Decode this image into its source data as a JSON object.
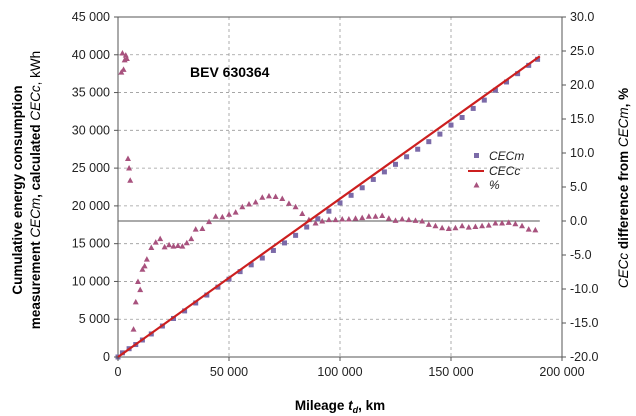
{
  "chart_data": {
    "type": "scatter",
    "annotation": "BEV 630364",
    "x_axis": {
      "label_parts": [
        "Mileage ",
        "t",
        "d",
        ", km"
      ],
      "range": [
        0,
        200000
      ],
      "ticks": [
        0,
        50000,
        100000,
        150000,
        200000
      ],
      "tick_labels": [
        "0",
        "50 000",
        "100 000",
        "150 000",
        "200 000"
      ]
    },
    "y_axis_left": {
      "label_line1": "Cumulative energy consumption",
      "label_line2_parts": [
        "measurement ",
        "CECm",
        ", calculated ",
        "CECc",
        ", kWh"
      ],
      "range": [
        0,
        45000
      ],
      "ticks": [
        0,
        5000,
        10000,
        15000,
        20000,
        25000,
        30000,
        35000,
        40000,
        45000
      ],
      "tick_labels": [
        "0",
        "5 000",
        "10 000",
        "15 000",
        "20 000",
        "25 000",
        "30 000",
        "35 000",
        "40 000",
        "45 000"
      ]
    },
    "y_axis_right": {
      "label_parts": [
        "CECc",
        "  difference from ",
        "CECm",
        ", %"
      ],
      "range": [
        -20,
        30
      ],
      "ticks": [
        -20,
        -15,
        -10,
        -5,
        0,
        5,
        10,
        15,
        20,
        25,
        30
      ],
      "tick_labels": [
        "-20.0",
        "-15.0",
        "-10.0",
        "-5.0",
        "0.0",
        "5.0",
        "10.0",
        "15.0",
        "20.0",
        "25.0",
        "30.0"
      ]
    },
    "grid": true,
    "legend_position": "right",
    "series": [
      {
        "name": "CECm",
        "marker": "square",
        "axis": "left",
        "color": "#7b6aa8",
        "x": [
          0,
          2000,
          5000,
          8000,
          11000,
          15000,
          20000,
          25000,
          30000,
          35000,
          40000,
          45000,
          50000,
          55000,
          60000,
          65000,
          70000,
          75000,
          80000,
          85000,
          90000,
          95000,
          100000,
          105000,
          110000,
          115000,
          120000,
          125000,
          130000,
          135000,
          140000,
          145000,
          150000,
          155000,
          160000,
          165000,
          170000,
          175000,
          180000,
          185000,
          189000
        ],
        "y": [
          0,
          550,
          1100,
          1650,
          2250,
          3050,
          4100,
          5100,
          6100,
          7150,
          8200,
          9250,
          10300,
          11300,
          12200,
          13100,
          14100,
          15100,
          16100,
          17200,
          18300,
          19300,
          20400,
          21400,
          22400,
          23500,
          24500,
          25500,
          26500,
          27500,
          28500,
          29500,
          30700,
          31700,
          32900,
          34000,
          35300,
          36400,
          37500,
          38600,
          39400
        ]
      },
      {
        "name": "CECc",
        "marker": "line",
        "axis": "left",
        "color": "#cc1f1f",
        "x": [
          0,
          190000
        ],
        "y": [
          0,
          39800
        ]
      },
      {
        "name": "%",
        "marker": "triangle",
        "axis": "right",
        "color": "#a8527e",
        "x": [
          1500,
          2000,
          2500,
          3000,
          3500,
          4000,
          4500,
          5000,
          5500,
          7000,
          8000,
          9000,
          10000,
          11000,
          12000,
          13000,
          15000,
          17000,
          19000,
          21000,
          23000,
          25000,
          27000,
          29000,
          31000,
          33000,
          35000,
          38000,
          41000,
          44000,
          47000,
          50000,
          53000,
          56000,
          59000,
          62000,
          65000,
          68000,
          71000,
          74000,
          77000,
          80000,
          83000,
          86000,
          89000,
          92000,
          95000,
          98000,
          101000,
          104000,
          107000,
          110000,
          113000,
          116000,
          119000,
          122000,
          125000,
          128000,
          131000,
          134000,
          137000,
          140000,
          143000,
          146000,
          149000,
          152000,
          155000,
          158000,
          161000,
          164000,
          167000,
          170000,
          173000,
          176000,
          179000,
          182000,
          185000,
          188000
        ],
        "y": [
          21.9,
          24.7,
          22.3,
          23.7,
          24.4,
          23.9,
          9.2,
          7.8,
          6.0,
          -15.9,
          -11.9,
          -8.9,
          -10.1,
          -7.1,
          -6.6,
          -5.6,
          -3.9,
          -3.1,
          -2.6,
          -3.8,
          -3.5,
          -3.7,
          -3.6,
          -3.7,
          -3.2,
          -2.6,
          -1.2,
          -1.1,
          -0.1,
          0.7,
          0.6,
          1.0,
          1.3,
          2.1,
          2.5,
          2.8,
          3.5,
          3.7,
          3.6,
          3.3,
          2.6,
          2.1,
          1.1,
          0.2,
          -0.3,
          0.0,
          0.2,
          0.2,
          0.3,
          0.3,
          0.4,
          0.5,
          0.7,
          0.7,
          0.8,
          0.4,
          0.1,
          0.3,
          0.2,
          0.1,
          0.0,
          -0.5,
          -0.7,
          -1.0,
          -1.1,
          -1.0,
          -0.7,
          -0.9,
          -0.8,
          -0.7,
          -0.6,
          -0.3,
          -0.3,
          -0.2,
          -0.4,
          -0.7,
          -1.2,
          -1.3
        ]
      }
    ]
  }
}
